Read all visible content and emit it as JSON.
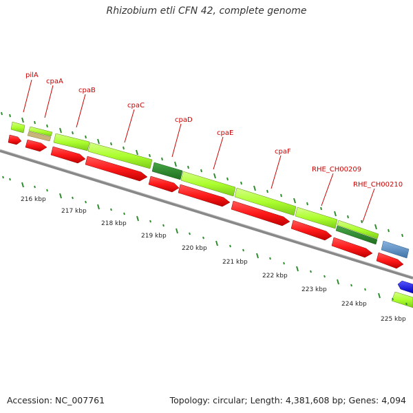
{
  "title": "Rhizobium etli CFN 42, complete genome",
  "footer": {
    "accession": "Accession: NC_007761",
    "summary": "Topology: circular; Length: 4,381,608 bp; Genes: 4,094"
  },
  "colors": {
    "gene_light": "#adff2f",
    "gene_dark": "#2e8b2e",
    "gene_tan": "#c8b478",
    "gene_blue": "#6495c8",
    "gene_deepblue": "#1e1eff",
    "cds": "#ff1a1a",
    "backbone": "#888888",
    "tick": "#2e8b2e",
    "label": "#cc0000"
  },
  "scale_labels": [
    "216 kbp",
    "217 kbp",
    "218 kbp",
    "219 kbp",
    "220 kbp",
    "221 kbp",
    "222 kbp",
    "223 kbp",
    "224 kbp",
    "225 kbp"
  ],
  "gene_labels": [
    "pilA",
    "cpaA",
    "cpaB",
    "cpaC",
    "cpaD",
    "cpaE",
    "cpaF",
    "RHE_CH00209",
    "RHE_CH00210"
  ]
}
